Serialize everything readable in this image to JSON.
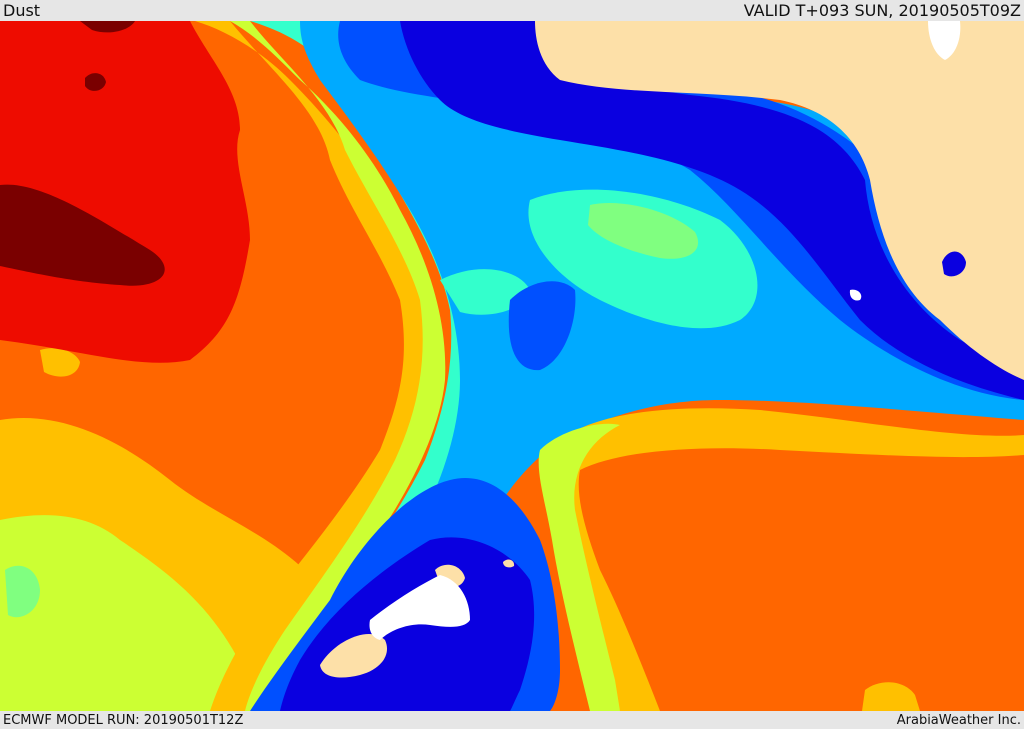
{
  "header": {
    "title": "Dust",
    "valid": "VALID T+093 SUN, 20190505T09Z"
  },
  "footer": {
    "model_run": "ECMWF MODEL RUN: 20190501T12Z",
    "credit": "ArabiaWeather Inc."
  },
  "palette": {
    "darkred": "#7a0000",
    "red": "#ee0c00",
    "orange": "#ff6600",
    "amber": "#ffc000",
    "yellow": "#ccff33",
    "lightgreen": "#80ff80",
    "aquamarine": "#33ffcc",
    "cyan": "#00dcf0",
    "skyblue": "#00aaff",
    "blue": "#0050ff",
    "darkblue": "#0a00e0",
    "land_none": "#fde0a8",
    "white": "#ffffff"
  }
}
